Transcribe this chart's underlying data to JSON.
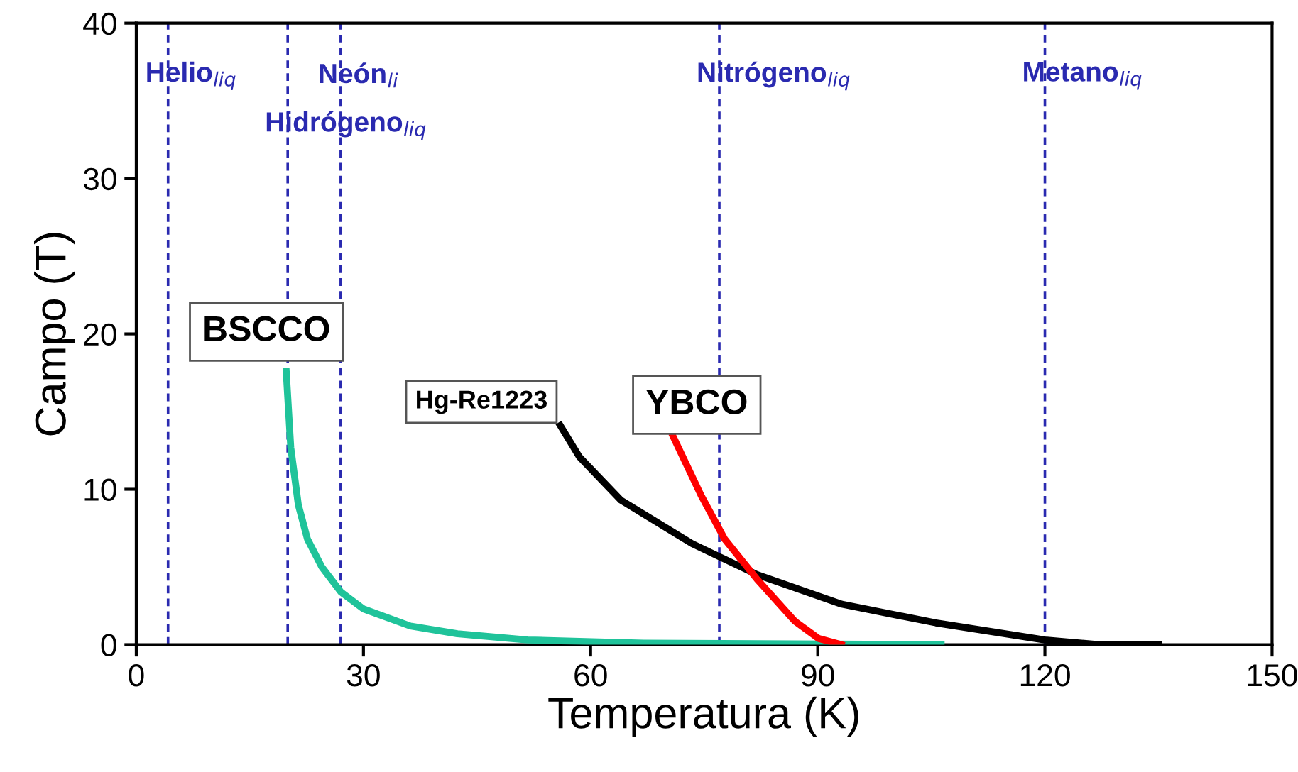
{
  "chart_data": {
    "type": "line",
    "xlabel": "Temperatura (K)",
    "ylabel": "Campo (T)",
    "xlim": [
      0,
      150
    ],
    "xticks": [
      0,
      30,
      60,
      90,
      120,
      150
    ],
    "ylim": [
      0,
      40
    ],
    "yticks": [
      0,
      10,
      20,
      30,
      40
    ],
    "grid": false,
    "legend": false,
    "marker": "none",
    "line_style": "solid",
    "series": [
      {
        "name": "BSCCO",
        "color": "#1fc39a",
        "x": [
          19.8,
          20.4,
          21.4,
          22.6,
          24.5,
          27,
          30,
          36.2,
          42.4,
          51.7,
          67,
          106.3
        ],
        "values": [
          17.6,
          12.7,
          9.0,
          6.8,
          5.0,
          3.4,
          2.3,
          1.2,
          0.7,
          0.3,
          0.1,
          0
        ]
      },
      {
        "name": "Hg-Re1223",
        "color": "#000000",
        "x": [
          56,
          58.5,
          64,
          73.4,
          82,
          93.2,
          105.6,
          120,
          127.3,
          135
        ],
        "values": [
          14.1,
          12.1,
          9.3,
          6.5,
          4.5,
          2.6,
          1.4,
          0.3,
          0,
          0
        ]
      },
      {
        "name": "YBCO",
        "color": "#ff0000",
        "x": [
          70.9,
          74.6,
          77.7,
          82,
          87,
          90.1,
          93.1
        ],
        "values": [
          13.4,
          9.6,
          6.8,
          4.2,
          1.5,
          0.4,
          0
        ]
      }
    ],
    "ref_lines": [
      {
        "axis": "x",
        "value": 4.2,
        "label": "Helio$_{liq}$",
        "color": "#2a2ab0",
        "line_style": "dashed"
      },
      {
        "axis": "x",
        "value": 20,
        "label": "Hidrógeno$_{liq}$",
        "color": "#2a2ab0",
        "line_style": "dashed"
      },
      {
        "axis": "x",
        "value": 27,
        "label": "Neón$_{li}$",
        "color": "#2a2ab0",
        "line_style": "dashed"
      },
      {
        "axis": "x",
        "value": 77,
        "label": "Nitrógeno$_{liq}$",
        "color": "#2a2ab0",
        "line_style": "dashed"
      },
      {
        "axis": "x",
        "value": 120,
        "label": "Metano$_{liq}$",
        "color": "#2a2ab0",
        "line_style": "dashed"
      }
    ]
  }
}
